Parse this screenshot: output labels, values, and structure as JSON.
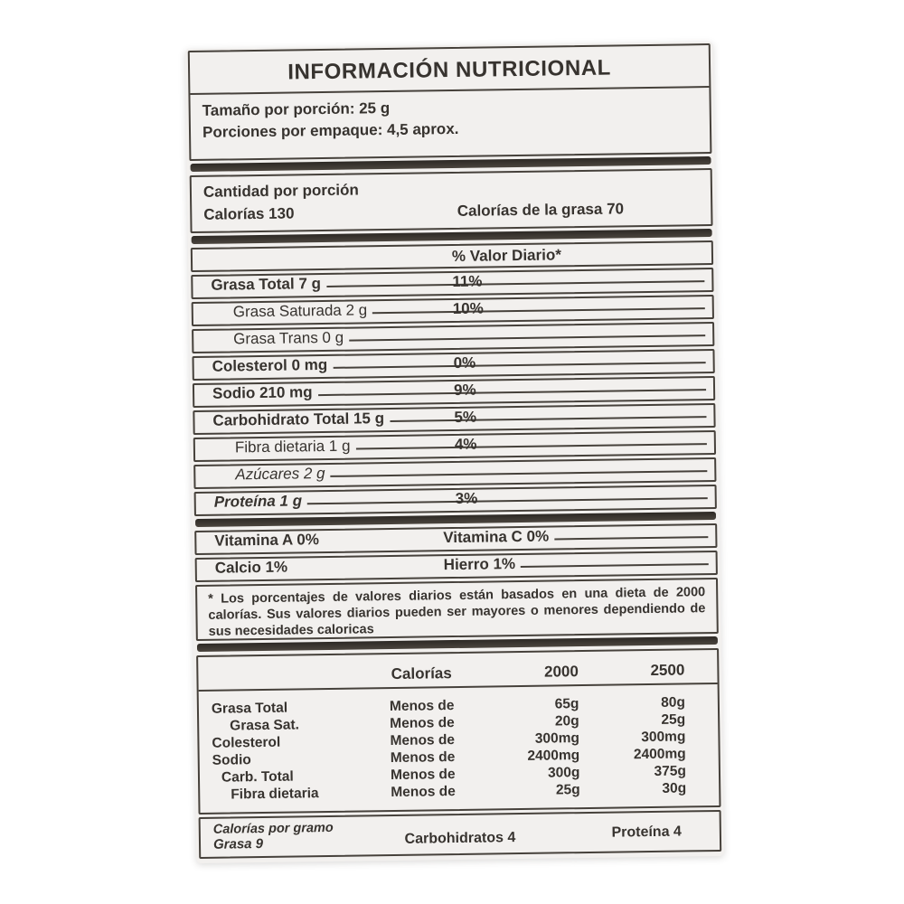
{
  "label": {
    "title": "INFORMACIÓN NUTRICIONAL",
    "serving": {
      "size": "Tamaño por porción: 25 g",
      "per_pack": "Porciones por empaque: 4,5 aprox."
    },
    "amount_section": {
      "heading": "Cantidad por porción",
      "calories": "Calorías 130",
      "calories_from_fat": "Calorías de la grasa 70"
    },
    "dv_header": "% Valor Diario*",
    "nutrients": [
      {
        "name": "Grasa Total 7 g",
        "dv": "11%"
      },
      {
        "name": "Grasa Saturada 2 g",
        "dv": "10%"
      },
      {
        "name": "Grasa Trans 0 g",
        "dv": ""
      },
      {
        "name": "Colesterol 0 mg",
        "dv": "0%"
      },
      {
        "name": "Sodio 210 mg",
        "dv": "9%"
      },
      {
        "name": "Carbohidrato Total 15 g",
        "dv": "5%"
      },
      {
        "name": "Fibra dietaria 1 g",
        "dv": "4%"
      },
      {
        "name": "Azúcares 2 g",
        "dv": ""
      },
      {
        "name": "Proteína 1 g",
        "dv": "3%"
      }
    ],
    "vitamins": [
      {
        "left": "Vitamina A 0%",
        "right": "Vitamina C 0%"
      },
      {
        "left": "Calcio 1%",
        "right": "Hierro 1%"
      }
    ],
    "footnote": "* Los porcentajes de valores diarios están basados en una  dieta de 2000 calorías. Sus valores diarios pueden ser mayores o menores dependiendo de sus necesidades caloricas",
    "reference_table": {
      "headers": [
        "Calorías",
        "2000",
        "2500"
      ],
      "rows": [
        {
          "name": "Grasa Total",
          "qual": "Menos de",
          "v2000": "65g",
          "v2500": "80g"
        },
        {
          "name": "Grasa Sat.",
          "qual": "Menos de",
          "v2000": "20g",
          "v2500": "25g"
        },
        {
          "name": "Colesterol",
          "qual": "Menos de",
          "v2000": "300mg",
          "v2500": "300mg"
        },
        {
          "name": "Sodio",
          "qual": "Menos de",
          "v2000": "2400mg",
          "v2500": "2400mg"
        },
        {
          "name": "Carb. Total",
          "qual": "Menos de",
          "v2000": "300g",
          "v2500": "375g"
        },
        {
          "name": "Fibra dietaria",
          "qual": "Menos de",
          "v2000": "25g",
          "v2500": "30g"
        }
      ]
    },
    "calories_per_gram": {
      "heading": "Calorías por gramo",
      "fat": "Grasa 9",
      "carbs": "Carbohidratos 4",
      "protein": "Proteína 4"
    }
  },
  "colors": {
    "paper": "#f2f0ee",
    "ink": "#37332f",
    "rule": "#46413b",
    "page_background": "#ffffff"
  }
}
